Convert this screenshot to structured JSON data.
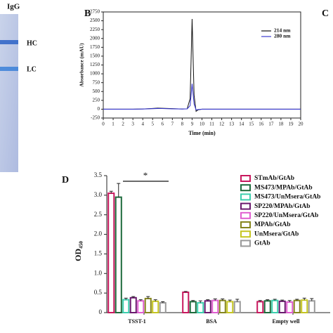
{
  "gel": {
    "title": "IgG",
    "bands": [
      "HC",
      "LC"
    ]
  },
  "other_panel": "C",
  "chart_data": [
    {
      "type": "line",
      "panel": "B",
      "xlabel": "Time (min)",
      "ylabel": "Absorbance (mAU)",
      "x": [
        0,
        1,
        2,
        3,
        4,
        5,
        5.5,
        6,
        7,
        8,
        8.5,
        8.8,
        9,
        9.2,
        9.4,
        9.6,
        10,
        12,
        14,
        16,
        18,
        20
      ],
      "series": [
        {
          "name": "214 nm",
          "color": "#111111",
          "values": [
            0,
            0,
            0,
            0,
            5,
            20,
            30,
            25,
            15,
            5,
            10,
            300,
            2550,
            400,
            -60,
            -20,
            0,
            0,
            0,
            0,
            0,
            0
          ]
        },
        {
          "name": "280 nm",
          "color": "#3b3bd0",
          "values": [
            0,
            0,
            0,
            0,
            5,
            15,
            20,
            18,
            10,
            5,
            10,
            100,
            720,
            150,
            -20,
            -10,
            0,
            0,
            0,
            0,
            0,
            0
          ]
        }
      ],
      "xlim": [
        0,
        20
      ],
      "xticks": [
        0,
        1,
        2,
        3,
        4,
        5,
        6,
        7,
        8,
        9,
        10,
        11,
        12,
        13,
        14,
        15,
        16,
        17,
        18,
        19,
        20
      ],
      "ylim": [
        -250,
        2750
      ],
      "yticks": [
        -250,
        0,
        250,
        500,
        750,
        1000,
        1250,
        1500,
        1750,
        2000,
        2250,
        2500,
        2750
      ],
      "legend": "upper right"
    },
    {
      "type": "bar",
      "panel": "D",
      "ylabel": "OD₄₅₀",
      "annotation": "*",
      "categories": [
        "TSST-1",
        "BSA",
        "Empty well"
      ],
      "series": [
        {
          "name": "STmAb/GtAb",
          "color": "#c8185e",
          "values": [
            3.05,
            0.52,
            0.28
          ],
          "errors": [
            0.05,
            0.02,
            0.03
          ]
        },
        {
          "name": "MS473/MPAb/GtAb",
          "color": "#1e6b3c",
          "values": [
            2.95,
            0.28,
            0.3
          ],
          "errors": [
            0.35,
            0.03,
            0.03
          ]
        },
        {
          "name": "MS473/UnMsera/GtAb",
          "color": "#3ccfae",
          "values": [
            0.33,
            0.25,
            0.31
          ],
          "errors": [
            0.04,
            0.05,
            0.03
          ]
        },
        {
          "name": "SP220/MPAb/GtAb",
          "color": "#6a1a6e",
          "values": [
            0.38,
            0.3,
            0.29
          ],
          "errors": [
            0.03,
            0.03,
            0.03
          ]
        },
        {
          "name": "SP220/UnMsera/GtAb",
          "color": "#e05fd0",
          "values": [
            0.3,
            0.31,
            0.27
          ],
          "errors": [
            0.03,
            0.04,
            0.04
          ]
        },
        {
          "name": "MPAb/GtAb",
          "color": "#86861e",
          "values": [
            0.36,
            0.31,
            0.31
          ],
          "errors": [
            0.05,
            0.04,
            0.03
          ]
        },
        {
          "name": "UnMsera/GtAb",
          "color": "#c6c622",
          "values": [
            0.29,
            0.28,
            0.32
          ],
          "errors": [
            0.04,
            0.04,
            0.05
          ]
        },
        {
          "name": "GtAb",
          "color": "#9a9a9a",
          "values": [
            0.25,
            0.28,
            0.3
          ],
          "errors": [
            0.03,
            0.06,
            0.06
          ]
        }
      ],
      "ylim": [
        0,
        3.5
      ],
      "yticks": [
        0,
        {
          "value": 0.5,
          "label": "0.5"
        },
        {
          "value": 1,
          "label": "1.0"
        },
        {
          "value": 1.5,
          "label": "1.5"
        },
        {
          "value": 2,
          "label": "2.0"
        },
        {
          "value": 2.5,
          "label": "2.5"
        },
        {
          "value": 3,
          "label": "3.0"
        },
        {
          "value": 3.5,
          "label": "3.5"
        }
      ],
      "legend": "upper right"
    }
  ]
}
